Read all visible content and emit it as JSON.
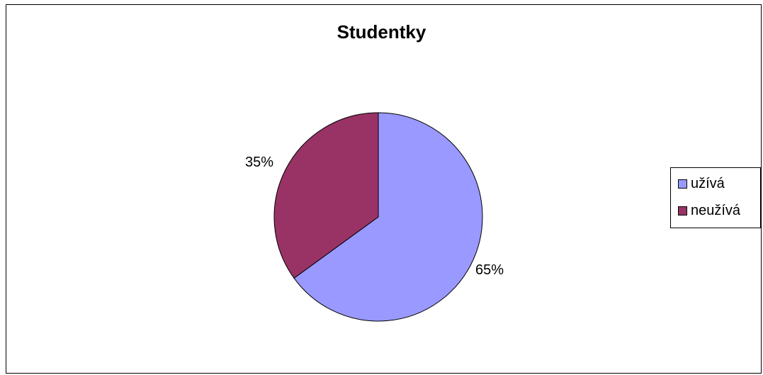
{
  "chart_data": {
    "type": "pie",
    "title": "Studentky",
    "slices": [
      {
        "label": "užívá",
        "value": 65,
        "display": "65%",
        "color": "#9999FF"
      },
      {
        "label": "neužívá",
        "value": 35,
        "display": "35%",
        "color": "#993366"
      }
    ],
    "legend_position": "right"
  }
}
